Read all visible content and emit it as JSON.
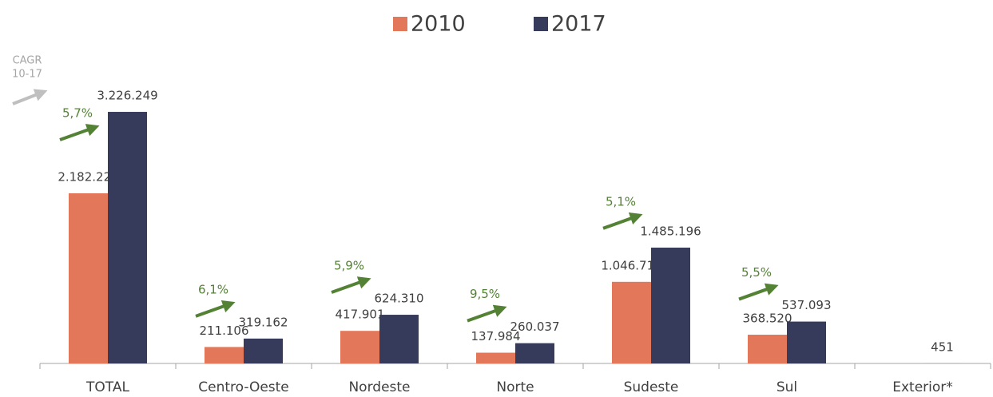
{
  "chart_data": {
    "type": "bar",
    "categories": [
      "TOTAL",
      "Centro-Oeste",
      "Nordeste",
      "Norte",
      "Sudeste",
      "Sul",
      "Exterior*"
    ],
    "series": [
      {
        "name": "2010",
        "color": "#e2775a",
        "values": [
          2182229,
          211106,
          417901,
          137984,
          1046718,
          368520,
          null
        ],
        "value_labels": [
          "2.182.229",
          "211.106",
          "417.901",
          "137.984",
          "1.046.718",
          "368.520",
          null
        ]
      },
      {
        "name": "2017",
        "color": "#363a5b",
        "values": [
          3226249,
          319162,
          624310,
          260037,
          1485196,
          537093,
          451
        ],
        "value_labels": [
          "3.226.249",
          "319.162",
          "624.310",
          "260.037",
          "1.485.196",
          "537.093",
          "451"
        ]
      }
    ],
    "cagr_title": [
      "CAGR",
      "10-17"
    ],
    "cagr_labels": [
      "5,7%",
      "6,1%",
      "5,9%",
      "9,5%",
      "5,1%",
      "5,5%",
      null
    ],
    "ylim": [
      0,
      4000000
    ],
    "legend": "top"
  }
}
